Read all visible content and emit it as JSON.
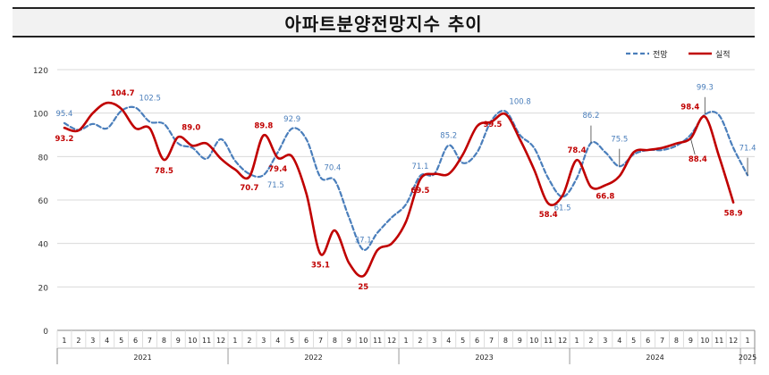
{
  "chart_data": {
    "type": "line",
    "title": "아파트분양전망지수  추이",
    "ylim": [
      0,
      120
    ],
    "yticks": [
      "0",
      "20",
      "40",
      "60",
      "80",
      "100",
      "120"
    ],
    "month_labels": [
      "1",
      "2",
      "3",
      "4",
      "5",
      "6",
      "7",
      "8",
      "9",
      "10",
      "11",
      "12",
      "1",
      "2",
      "3",
      "4",
      "5",
      "6",
      "7",
      "8",
      "9",
      "10",
      "11",
      "12",
      "1",
      "2",
      "3",
      "4",
      "5",
      "6",
      "7",
      "8",
      "9",
      "10",
      "11",
      "12",
      "1",
      "2",
      "3",
      "4",
      "5",
      "6",
      "7",
      "8",
      "9",
      "10",
      "11",
      "12",
      "1"
    ],
    "years": [
      {
        "label": "2021",
        "start": 0,
        "end": 11
      },
      {
        "label": "2022",
        "start": 12,
        "end": 23
      },
      {
        "label": "2023",
        "start": 24,
        "end": 35
      },
      {
        "label": "2024",
        "start": 36,
        "end": 47
      },
      {
        "label": "2025",
        "start": 48,
        "end": 48
      }
    ],
    "grid": true,
    "legend_position": "top-right",
    "series": [
      {
        "name": "전망",
        "color": "#4a7ebb",
        "dash": true,
        "values": [
          95.4,
          92.2,
          95.0,
          93.0,
          101.0,
          102.5,
          96.0,
          95.0,
          86.0,
          84.0,
          79.0,
          88.0,
          78.0,
          72.0,
          71.5,
          82.0,
          92.9,
          88.0,
          70.4,
          69.0,
          52.0,
          37.1,
          45.0,
          52.0,
          58.0,
          71.1,
          72.0,
          85.2,
          77.0,
          82.0,
          96.5,
          100.8,
          90.0,
          84.0,
          70.0,
          61.5,
          70.0,
          86.2,
          82.0,
          75.5,
          81.0,
          83.0,
          83.0,
          85.0,
          90.0,
          99.3,
          99.0,
          84.0,
          71.4
        ]
      },
      {
        "name": "실적",
        "color": "#c00000",
        "dash": false,
        "values": [
          93.2,
          92.0,
          100.0,
          104.7,
          102.0,
          93.0,
          93.0,
          78.5,
          89.0,
          85.0,
          86.0,
          79.0,
          74.0,
          70.7,
          89.8,
          79.4,
          80.0,
          63.0,
          35.1,
          46.0,
          31.0,
          25.0,
          37.0,
          40.0,
          50.0,
          69.5,
          72.0,
          72.0,
          81.0,
          94.0,
          96.0,
          99.5,
          88.0,
          74.0,
          58.4,
          62.0,
          78.4,
          66.0,
          66.8,
          71.0,
          82.0,
          83.0,
          84.0,
          86.0,
          88.4,
          98.4,
          80.0,
          58.9,
          null
        ]
      }
    ],
    "data_labels": [
      {
        "series": 0,
        "index": 0,
        "text": "95.4",
        "anchor": "above"
      },
      {
        "series": 0,
        "index": 5,
        "text": "102.5",
        "anchor": "above-right"
      },
      {
        "series": 0,
        "index": 14,
        "text": "71.5",
        "anchor": "below-right"
      },
      {
        "series": 0,
        "index": 16,
        "text": "92.9",
        "anchor": "above"
      },
      {
        "series": 0,
        "index": 18,
        "text": "70.4",
        "anchor": "above-right"
      },
      {
        "series": 0,
        "index": 21,
        "text": "37.1",
        "anchor": "above"
      },
      {
        "series": 0,
        "index": 25,
        "text": "71.1",
        "anchor": "above"
      },
      {
        "series": 0,
        "index": 27,
        "text": "85.2",
        "anchor": "above"
      },
      {
        "series": 0,
        "index": 31,
        "text": "100.8",
        "anchor": "above-right"
      },
      {
        "series": 0,
        "index": 35,
        "text": "61.5",
        "anchor": "below"
      },
      {
        "series": 0,
        "index": 37,
        "text": "86.2",
        "anchor": "above-high"
      },
      {
        "series": 0,
        "index": 39,
        "text": "75.5",
        "anchor": "above-high"
      },
      {
        "series": 0,
        "index": 45,
        "text": "99.3",
        "anchor": "above-high"
      },
      {
        "series": 0,
        "index": 48,
        "text": "71.4",
        "anchor": "above-high"
      },
      {
        "series": 1,
        "index": 0,
        "text": "93.2",
        "anchor": "below"
      },
      {
        "series": 1,
        "index": 3,
        "text": "104.7",
        "anchor": "above-right"
      },
      {
        "series": 1,
        "index": 7,
        "text": "78.5",
        "anchor": "below"
      },
      {
        "series": 1,
        "index": 8,
        "text": "89.0",
        "anchor": "above-right"
      },
      {
        "series": 1,
        "index": 13,
        "text": "70.7",
        "anchor": "below"
      },
      {
        "series": 1,
        "index": 14,
        "text": "89.8",
        "anchor": "above"
      },
      {
        "series": 1,
        "index": 15,
        "text": "79.4",
        "anchor": "below"
      },
      {
        "series": 1,
        "index": 18,
        "text": "35.1",
        "anchor": "below"
      },
      {
        "series": 1,
        "index": 21,
        "text": "25",
        "anchor": "below"
      },
      {
        "series": 1,
        "index": 25,
        "text": "69.5",
        "anchor": "below"
      },
      {
        "series": 1,
        "index": 31,
        "text": "99.5",
        "anchor": "below-left"
      },
      {
        "series": 1,
        "index": 34,
        "text": "58.4",
        "anchor": "below"
      },
      {
        "series": 1,
        "index": 36,
        "text": "78.4",
        "anchor": "above"
      },
      {
        "series": 1,
        "index": 38,
        "text": "66.8",
        "anchor": "below"
      },
      {
        "series": 1,
        "index": 44,
        "text": "88.4",
        "anchor": "below-low"
      },
      {
        "series": 1,
        "index": 45,
        "text": "98.4",
        "anchor": "above-left"
      },
      {
        "series": 1,
        "index": 47,
        "text": "58.9",
        "anchor": "below"
      }
    ]
  }
}
